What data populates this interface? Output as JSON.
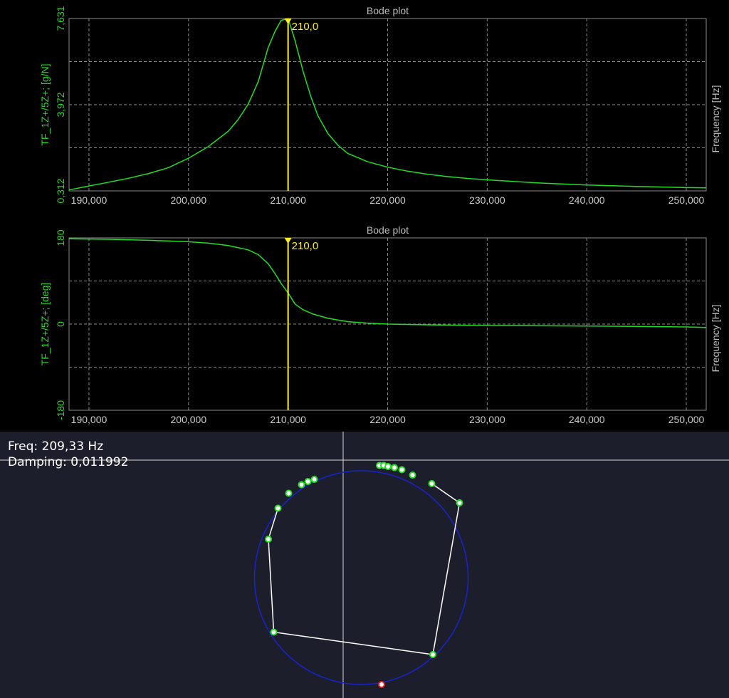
{
  "colors": {
    "trace": "#22dd22",
    "cursor": "#ffee22",
    "grid": "#8a8a8a",
    "axis_text": "#cccccc",
    "title_text": "#bbbbbb",
    "circle": "#1a22cc",
    "polyline": "#ffffff",
    "marker_fill": "#ffffff",
    "marker_border": "#22dd22",
    "selected_marker": "#dd2222",
    "nyquist_bg": "#1c1f2b"
  },
  "chart_data": [
    {
      "type": "line",
      "title": "Bode plot",
      "xlabel": "Frequency [Hz]",
      "ylabel": "TF_1Z+/5Z+; [g/N]",
      "xlim": [
        188,
        252
      ],
      "ylim": [
        0.312,
        7.631
      ],
      "grid": true,
      "x_ticks": [
        "190,000",
        "200,000",
        "210,000",
        "220,000",
        "230,000",
        "240,000",
        "250,000"
      ],
      "x_tick_values": [
        190,
        200,
        210,
        220,
        230,
        240,
        250
      ],
      "y_ticks": [
        "0,312",
        "3,972",
        "7,631"
      ],
      "y_tick_values": [
        0.312,
        3.972,
        7.631
      ],
      "cursor": {
        "x": 210,
        "label": "210,0"
      },
      "series": [
        {
          "x": [
            188,
            190,
            192,
            194,
            196,
            198,
            200,
            202,
            204,
            205,
            206,
            207,
            208,
            208.7,
            209.3,
            210,
            210.7,
            211.5,
            212.3,
            213,
            214,
            215,
            216,
            218,
            220,
            222,
            224,
            226,
            228,
            230,
            235,
            240,
            245,
            250,
            252
          ],
          "y": [
            0.35,
            0.52,
            0.68,
            0.85,
            1.05,
            1.3,
            1.7,
            2.2,
            2.85,
            3.35,
            4.0,
            4.95,
            6.4,
            7.1,
            7.55,
            7.63,
            6.7,
            5.4,
            4.3,
            3.5,
            2.75,
            2.25,
            1.9,
            1.55,
            1.32,
            1.15,
            1.02,
            0.92,
            0.84,
            0.78,
            0.65,
            0.56,
            0.5,
            0.45,
            0.44
          ]
        }
      ]
    },
    {
      "type": "line",
      "title": "Bode plot",
      "xlabel": "Frequency [Hz]",
      "ylabel": "TF_1Z+/5Z+; [deg]",
      "xlim": [
        188,
        252
      ],
      "ylim": [
        -180,
        180
      ],
      "grid": true,
      "x_ticks": [
        "190,000",
        "200,000",
        "210,000",
        "220,000",
        "230,000",
        "240,000",
        "250,000"
      ],
      "x_tick_values": [
        190,
        200,
        210,
        220,
        230,
        240,
        250
      ],
      "y_ticks": [
        "-180",
        "0",
        "180"
      ],
      "y_tick_values": [
        -180,
        0,
        180
      ],
      "cursor": {
        "x": 210,
        "label": "210,0"
      },
      "series": [
        {
          "x": [
            188,
            192,
            196,
            200,
            202,
            204,
            206,
            207,
            208,
            208.7,
            209.3,
            210,
            210.7,
            211.5,
            212.5,
            214,
            216,
            218,
            220,
            225,
            230,
            240,
            250,
            252
          ],
          "y": [
            178,
            177,
            175,
            172,
            169,
            164,
            155,
            145,
            126,
            105,
            85,
            65,
            42,
            30,
            21,
            12,
            5,
            2,
            0,
            -2,
            -3,
            -4,
            -6,
            -7
          ]
        }
      ]
    },
    {
      "type": "scatter",
      "title": "",
      "xlim": [
        -1.7,
        1.7
      ],
      "ylim": [
        -1.2,
        1.2
      ],
      "grid": false,
      "readout": {
        "freq": "Freq: 209,33 Hz",
        "damping": "Damping: 0,011992"
      },
      "circle": {
        "cx": 0.17,
        "cy": -0.1,
        "r": 1.0
      },
      "crosshair": {
        "x": 0.0,
        "y": 1.0
      },
      "points": [
        {
          "x": 0.34,
          "y": 0.95
        },
        {
          "x": 0.38,
          "y": 0.95
        },
        {
          "x": 0.42,
          "y": 0.94
        },
        {
          "x": 0.48,
          "y": 0.93
        },
        {
          "x": 0.55,
          "y": 0.91
        },
        {
          "x": 0.65,
          "y": 0.86
        },
        {
          "x": 0.83,
          "y": 0.78
        },
        {
          "x": 1.09,
          "y": 0.6
        },
        {
          "x": 0.84,
          "y": -0.82
        },
        {
          "x": -0.65,
          "y": -0.61
        },
        {
          "x": -0.7,
          "y": 0.26
        },
        {
          "x": -0.61,
          "y": 0.55
        },
        {
          "x": -0.51,
          "y": 0.69
        },
        {
          "x": -0.39,
          "y": 0.77
        },
        {
          "x": -0.33,
          "y": 0.8
        },
        {
          "x": -0.27,
          "y": 0.82
        }
      ],
      "polyline": [
        {
          "x": 0.83,
          "y": 0.78
        },
        {
          "x": 1.09,
          "y": 0.6
        },
        {
          "x": 0.84,
          "y": -0.82
        },
        {
          "x": -0.65,
          "y": -0.61
        },
        {
          "x": -0.7,
          "y": 0.26
        },
        {
          "x": -0.61,
          "y": 0.55
        }
      ],
      "selected_point": {
        "x": 0.36,
        "y": -1.1
      }
    }
  ]
}
